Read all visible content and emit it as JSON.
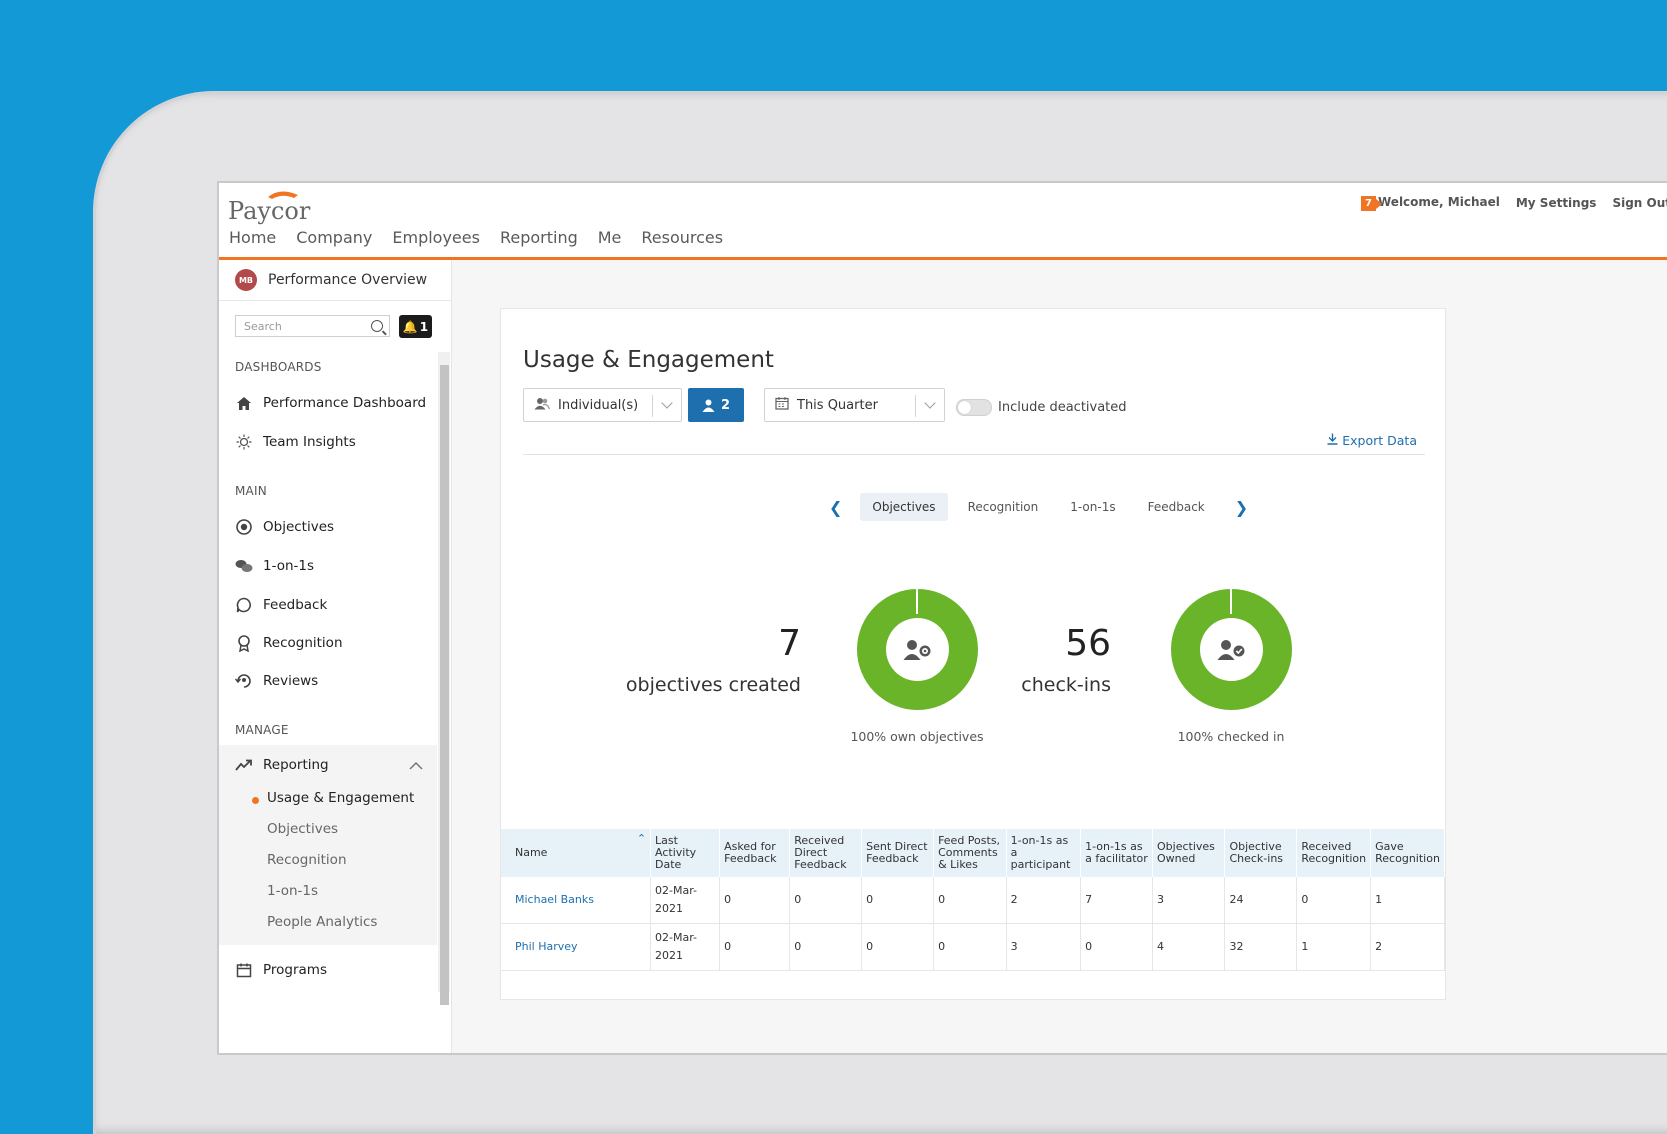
{
  "app": {
    "logo_text": "Paycor"
  },
  "topnav": [
    "Home",
    "Company",
    "Employees",
    "Reporting",
    "Me",
    "Resources"
  ],
  "user": {
    "notification_count": "7",
    "welcome": "Welcome, Michael",
    "settings": "My Settings",
    "signout": "Sign Out"
  },
  "sidebar": {
    "avatar": "MB",
    "header": "Performance Overview",
    "search_placeholder": "Search",
    "bell_count": "1",
    "sections": {
      "dashboards": "DASHBOARDS",
      "main": "MAIN",
      "manage": "MANAGE"
    },
    "dashboards": [
      "Performance Dashboard",
      "Team Insights"
    ],
    "main": [
      "Objectives",
      "1-on-1s",
      "Feedback",
      "Recognition",
      "Reviews"
    ],
    "reporting": "Reporting",
    "reporting_sub": [
      "Usage & Engagement",
      "Objectives",
      "Recognition",
      "1-on-1s",
      "People Analytics"
    ],
    "programs": "Programs"
  },
  "page": {
    "title": "Usage & Engagement",
    "filter_individuals": "Individual(s)",
    "selected_count": "2",
    "period": "This Quarter",
    "include_deactivated": "Include deactivated",
    "export": "Export Data",
    "tabs": [
      "Objectives",
      "Recognition",
      "1-on-1s",
      "Feedback"
    ],
    "selected_tab": "Objectives"
  },
  "stats": [
    {
      "value": "7",
      "label": "objectives created",
      "caption": "100% own objectives",
      "percent": 100
    },
    {
      "value": "56",
      "label": "check-ins",
      "caption": "100% checked in",
      "percent": 100
    }
  ],
  "table": {
    "headers": [
      "Name",
      "Last Activity Date",
      "Asked for Feedback",
      "Received Direct Feedback",
      "Sent Direct Feedback",
      "Feed Posts, Comments & Likes",
      "1-on-1s as a participant",
      "1-on-1s as a facilitator",
      "Objectives Owned",
      "Objective Check-ins",
      "Received Recognition",
      "Gave Recognition"
    ],
    "rows": [
      [
        "Michael Banks",
        "02-Mar-2021",
        "0",
        "0",
        "0",
        "0",
        "2",
        "7",
        "3",
        "24",
        "0",
        "1"
      ],
      [
        "Phil Harvey",
        "02-Mar-2021",
        "0",
        "0",
        "0",
        "0",
        "3",
        "0",
        "4",
        "32",
        "1",
        "2"
      ]
    ]
  },
  "colors": {
    "accent_orange": "#f07522",
    "primary_blue": "#1e6fae",
    "donut_green": "#6ab429",
    "background": "#1399d6"
  }
}
